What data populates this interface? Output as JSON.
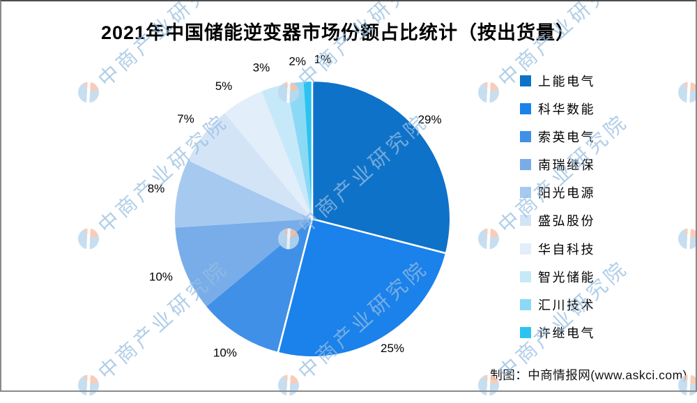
{
  "page": {
    "title": "2021年中国储能逆变器市场份额占比统计（按出货量）"
  },
  "chart_data": {
    "type": "pie",
    "title": "2021年中国储能逆变器市场份额占比统计（按出货量）",
    "value_unit": "percent-of-shipments",
    "legend_position": "right",
    "start_angle_deg": 0,
    "direction": "clockwise",
    "slices": [
      {
        "name": "上能电气",
        "value": 29,
        "label": "29%",
        "color": "#0e72c9"
      },
      {
        "name": "科华数能",
        "value": 25,
        "label": "25%",
        "color": "#1b81eb"
      },
      {
        "name": "索英电气",
        "value": 10,
        "label": "10%",
        "color": "#4090e7"
      },
      {
        "name": "南瑞继保",
        "value": 10,
        "label": "10%",
        "color": "#79ade9"
      },
      {
        "name": "阳光电源",
        "value": 8,
        "label": "8%",
        "color": "#a6c9f0"
      },
      {
        "name": "盛弘股份",
        "value": 7,
        "label": "7%",
        "color": "#d4e4f7"
      },
      {
        "name": "华自科技",
        "value": 5,
        "label": "5%",
        "color": "#e2eefa"
      },
      {
        "name": "智光储能",
        "value": 3,
        "label": "3%",
        "color": "#c6e9f9"
      },
      {
        "name": "汇川技术",
        "value": 2,
        "label": "2%",
        "color": "#8cd9f6"
      },
      {
        "name": "许继电气",
        "value": 1,
        "label": "1%",
        "color": "#2dc3f1"
      }
    ]
  },
  "footer": {
    "credit": "制图：中商情报网(www.askci.com)"
  },
  "watermark": {
    "text": "中商产业研究院",
    "text_color": "#96bee1",
    "logo_blue": "#bed9ee",
    "logo_orange": "#f6c5ad"
  }
}
